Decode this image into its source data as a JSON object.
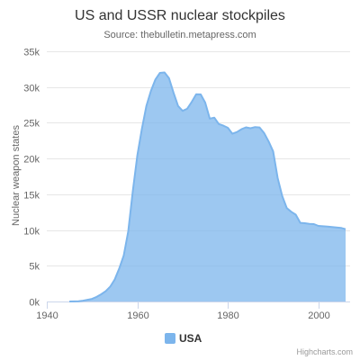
{
  "chart_data": {
    "type": "area",
    "title": "US and USSR nuclear stockpiles",
    "subtitle": "Source: thebulletin.metapress.com",
    "xlabel": "",
    "ylabel": "Nuclear weapon states",
    "xlim": [
      1940,
      2007
    ],
    "ylim": [
      0,
      35000
    ],
    "x_ticks": [
      1940,
      1960,
      1980,
      2000
    ],
    "x_tick_labels": [
      "1940",
      "1960",
      "1980",
      "2000"
    ],
    "y_ticks": [
      0,
      5000,
      10000,
      15000,
      20000,
      25000,
      30000,
      35000
    ],
    "y_tick_labels": [
      "0k",
      "5k",
      "10k",
      "15k",
      "20k",
      "25k",
      "30k",
      "35k"
    ],
    "grid": "horizontal",
    "legend_position": "bottom-center",
    "series": [
      {
        "name": "USA",
        "color": "#7cb5ec",
        "x": [
          1945,
          1946,
          1947,
          1948,
          1949,
          1950,
          1951,
          1952,
          1953,
          1954,
          1955,
          1956,
          1957,
          1958,
          1959,
          1960,
          1961,
          1962,
          1963,
          1964,
          1965,
          1966,
          1967,
          1968,
          1969,
          1970,
          1971,
          1972,
          1973,
          1974,
          1975,
          1976,
          1977,
          1978,
          1979,
          1980,
          1981,
          1982,
          1983,
          1984,
          1985,
          1986,
          1987,
          1988,
          1989,
          1990,
          1991,
          1992,
          1993,
          1994,
          1995,
          1996,
          1997,
          1998,
          1999,
          2000,
          2001,
          2002,
          2003,
          2004,
          2005,
          2006
        ],
        "values": [
          6,
          11,
          32,
          110,
          235,
          369,
          640,
          1005,
          1436,
          2063,
          3057,
          4618,
          6444,
          9822,
          15468,
          20434,
          24126,
          27387,
          29459,
          31056,
          31982,
          32040,
          31233,
          29224,
          27342,
          26662,
          26956,
          27912,
          28999,
          28965,
          27826,
          25579,
          25722,
          24826,
          24605,
          24304,
          23464,
          23708,
          24099,
          24357,
          24237,
          24401,
          24344,
          23586,
          22380,
          21004,
          17287,
          14747,
          13076,
          12555,
          12144,
          11009,
          10950,
          10871,
          10824,
          10577,
          10527,
          10475,
          10421,
          10358,
          10295,
          10104
        ]
      }
    ]
  },
  "credits": "Highcharts.com"
}
